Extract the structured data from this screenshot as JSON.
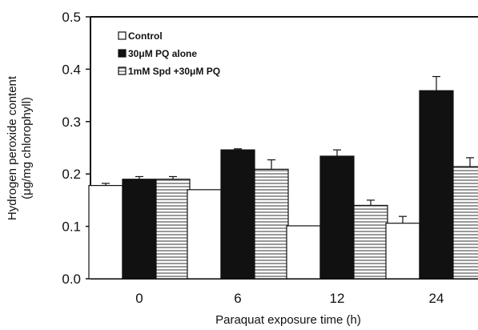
{
  "chart_data": {
    "type": "bar",
    "title": "",
    "xlabel": "Paraquat exposure time  (h)",
    "ylabel_line1": "Hydrogen peroxide content",
    "ylabel_line2": "(μg/mg chlorophyll)",
    "categories": [
      "0",
      "6",
      "12",
      "24"
    ],
    "ylim": [
      0,
      0.5
    ],
    "yticks": [
      "0.0",
      "0.1",
      "0.2",
      "0.3",
      "0.4",
      "0.5"
    ],
    "legend_position": "top-left",
    "series": [
      {
        "name": "Control",
        "pattern": "white",
        "values": [
          0.178,
          0.17,
          0.101,
          0.106
        ],
        "errors": [
          0.004,
          0,
          0,
          0.013
        ]
      },
      {
        "name": "30μM PQ alone",
        "pattern": "black",
        "values": [
          0.19,
          0.246,
          0.234,
          0.359
        ],
        "errors": [
          0.005,
          0.002,
          0.012,
          0.027
        ]
      },
      {
        "name": "1mM Spd +30μM PQ",
        "pattern": "hatched",
        "values": [
          0.19,
          0.209,
          0.14,
          0.214
        ],
        "errors": [
          0.005,
          0.018,
          0.01,
          0.017
        ]
      }
    ],
    "colors": {
      "black_fill": "#111111",
      "axis": "#111111",
      "hatch": "#555555"
    }
  }
}
